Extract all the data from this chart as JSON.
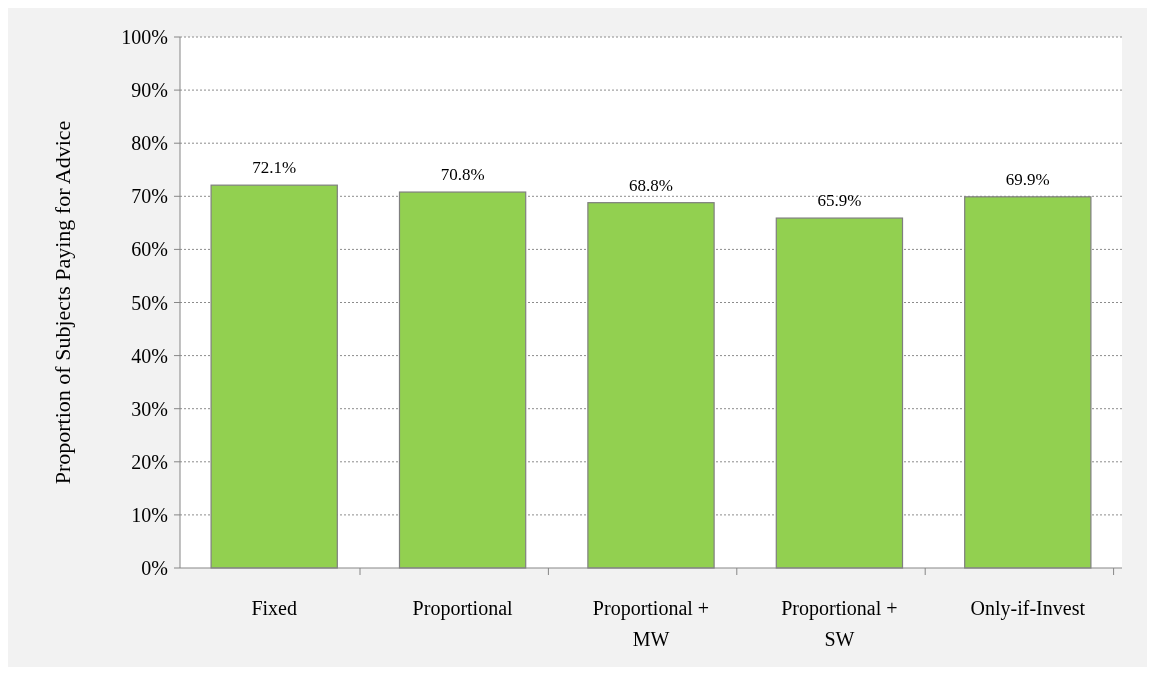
{
  "chart_data": {
    "type": "bar",
    "ylabel": "Proportion of Subjects Paying for Advice",
    "categories": [
      "Fixed",
      "Proportional",
      "Proportional + MW",
      "Proportional + SW",
      "Only-if-Invest"
    ],
    "values": [
      72.1,
      70.8,
      68.8,
      65.9,
      69.9
    ],
    "value_labels": [
      "72.1%",
      "70.8%",
      "68.8%",
      "65.9%",
      "69.9%"
    ],
    "color": "#92d050",
    "ylim": [
      0,
      100
    ],
    "yticks": [
      {
        "value": 0,
        "label": "0%"
      },
      {
        "value": 10,
        "label": "10%"
      },
      {
        "value": 20,
        "label": "20%"
      },
      {
        "value": 30,
        "label": "30%"
      },
      {
        "value": 40,
        "label": "40%"
      },
      {
        "value": 50,
        "label": "50%"
      },
      {
        "value": 60,
        "label": "60%"
      },
      {
        "value": 70,
        "label": "70%"
      },
      {
        "value": 80,
        "label": "80%"
      },
      {
        "value": 90,
        "label": "90%"
      },
      {
        "value": 100,
        "label": "100%"
      }
    ],
    "grid": "y"
  }
}
